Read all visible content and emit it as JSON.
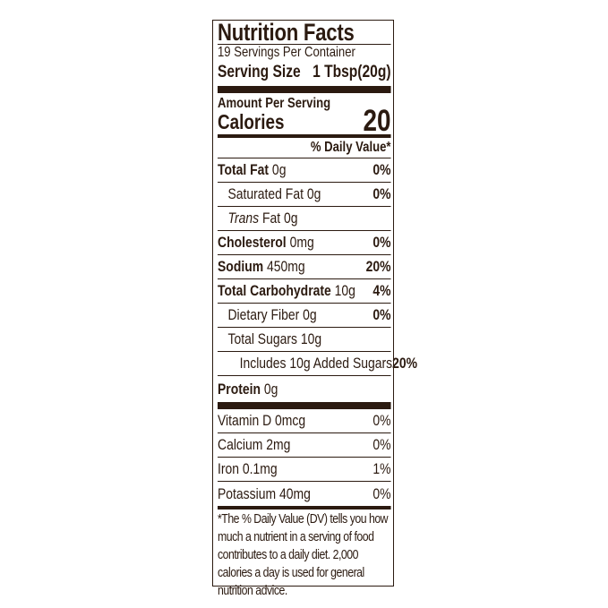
{
  "title": "Nutrition Facts",
  "servings_per_container": "19 Servings Per Container",
  "serving_size": {
    "label": "Serving Size",
    "value": "1 Tbsp(20g)"
  },
  "amount_per_serving": "Amount Per Serving",
  "calories": {
    "label": "Calories",
    "value": "20"
  },
  "daily_value_header": "% Daily Value*",
  "nutrients": [
    {
      "label": "Total Fat",
      "amount": "0g",
      "dv": "0%"
    },
    {
      "label": "Saturated Fat 0g",
      "dv": "0%"
    },
    {
      "label_italic": "Trans",
      "label": "Fat 0g"
    },
    {
      "label": "Cholesterol",
      "amount": "0mg",
      "dv": "0%"
    },
    {
      "label": "Sodium",
      "amount": "450mg",
      "dv": "20%"
    },
    {
      "label": "Total Carbohydrate",
      "amount": "10g",
      "dv": "4%"
    },
    {
      "label": "Dietary Fiber 0g",
      "dv": "0%"
    },
    {
      "label": "Total Sugars 10g"
    },
    {
      "label": "Includes 10g Added Sugars",
      "dv": "20%"
    },
    {
      "label": "Protein",
      "amount": "0g"
    }
  ],
  "vitamins": [
    {
      "label": "Vitamin D 0mcg",
      "dv": "0%"
    },
    {
      "label": "Calcium 2mg",
      "dv": "0%"
    },
    {
      "label": "Iron 0.1mg",
      "dv": "1%"
    },
    {
      "label": "Potassium 40mg",
      "dv": "0%"
    }
  ],
  "footnote": "*The % Daily Value (DV) tells you how much a nutrient in a serving of food contributes to a daily diet. 2,000 calories a day is used for general nutrition advice.",
  "colors": {
    "ink": "#2b1a10",
    "background": "#ffffff"
  }
}
